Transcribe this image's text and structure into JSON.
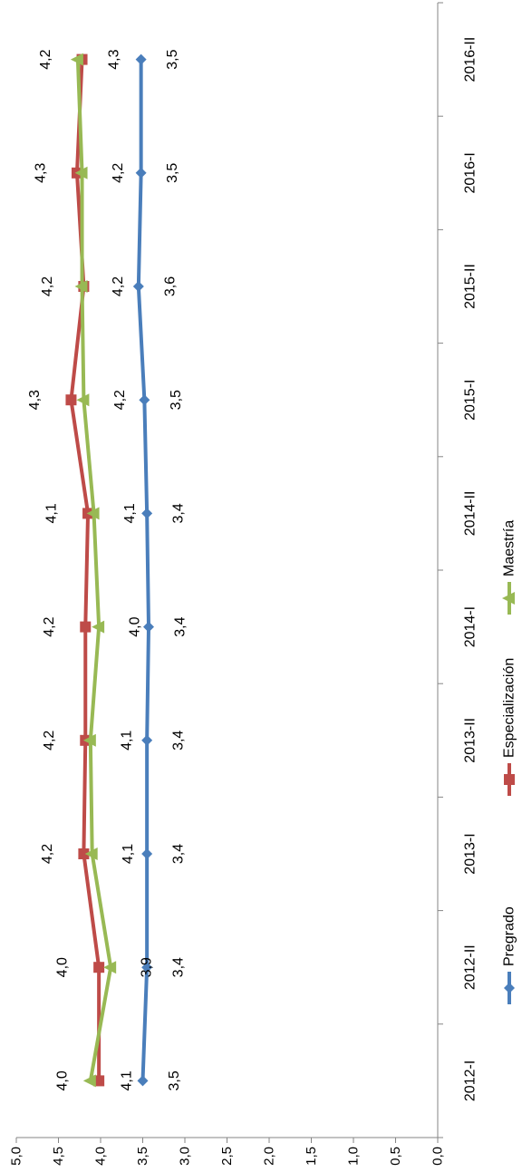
{
  "chart_data": {
    "type": "line",
    "orientation": "rotated 90 degrees clockwise",
    "categories": [
      "2012-I",
      "2012-II",
      "2013-I",
      "2013-II",
      "2014-I",
      "2014-II",
      "2015-I",
      "2015-II",
      "2016-I",
      "2016-II"
    ],
    "series": [
      {
        "name": "Pregrado",
        "color": "#4a7ebb",
        "marker": "diamond",
        "values": [
          3.5,
          3.45,
          3.45,
          3.45,
          3.43,
          3.45,
          3.48,
          3.55,
          3.52,
          3.52
        ],
        "labels": [
          "3,5",
          "3,4",
          "3,4",
          "3,4",
          "3,4",
          "3,4",
          "3,5",
          "3,6",
          "3,5",
          "3,5"
        ]
      },
      {
        "name": "Especialización",
        "color": "#be4b48",
        "marker": "square",
        "values": [
          4.02,
          4.02,
          4.2,
          4.18,
          4.18,
          4.15,
          4.35,
          4.2,
          4.28,
          4.22
        ],
        "labels": [
          "4,0",
          "4,0",
          "4,2",
          "4,2",
          "4,2",
          "4,1",
          "4,3",
          "4,2",
          "4,3",
          "4,2"
        ]
      },
      {
        "name": "Maestría",
        "color": "#98b954",
        "marker": "triangle",
        "values": [
          4.12,
          3.88,
          4.1,
          4.12,
          4.02,
          4.08,
          4.2,
          4.22,
          4.22,
          4.27
        ],
        "labels": [
          "4,1",
          "3,9",
          "4,1",
          "4,1",
          "4,0",
          "4,1",
          "4,2",
          "4,2",
          "4,2",
          "4,3"
        ]
      }
    ],
    "value_axis": {
      "min": 0,
      "max": 5,
      "step": 0.5,
      "tick_labels": [
        "0,0",
        "0,5",
        "1,0",
        "1,5",
        "2,0",
        "2,5",
        "3,0",
        "3,5",
        "4,0",
        "4,5",
        "5,0"
      ]
    },
    "grid": false,
    "legend": "bottom"
  }
}
